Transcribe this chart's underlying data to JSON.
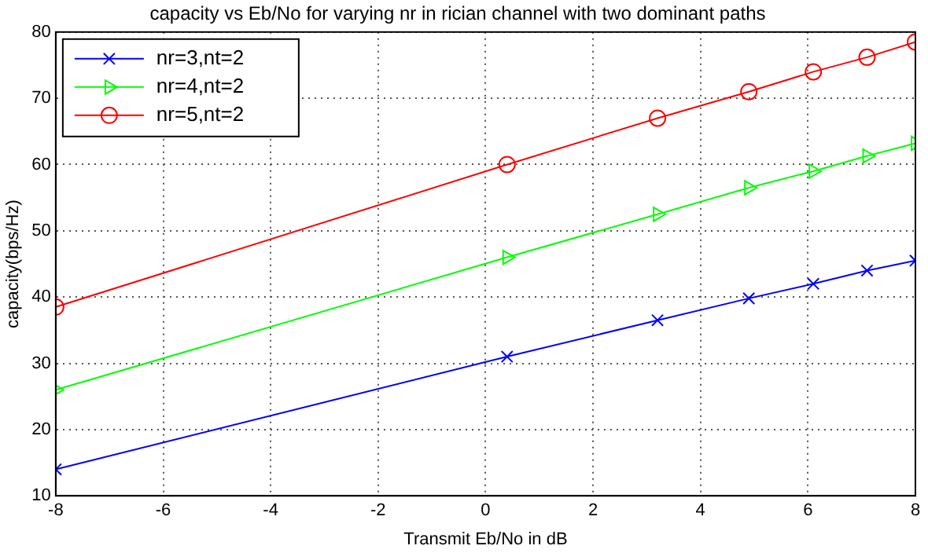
{
  "chart_data": {
    "type": "line",
    "title": "capacity vs Eb/No for varying nr in rician channel with two dominant paths",
    "xlabel": "Transmit Eb/No in dB",
    "ylabel": "capacity(bps/Hz)",
    "x": [
      -8,
      0.4,
      3.2,
      4.9,
      6.1,
      7.1,
      8
    ],
    "xlim": [
      -8,
      8
    ],
    "xticks": [
      -8,
      -6,
      -4,
      -2,
      0,
      2,
      4,
      6,
      8
    ],
    "ylim": [
      10,
      80
    ],
    "yticks": [
      10,
      20,
      30,
      40,
      50,
      60,
      70,
      80
    ],
    "grid": true,
    "legend": "top left",
    "line_style": "solid",
    "series": [
      {
        "name": "nr=3,nt=2",
        "color": "#0000ff",
        "marker": "cross",
        "values": [
          14,
          31,
          36.5,
          39.8,
          42,
          44,
          45.5
        ]
      },
      {
        "name": "nr=4,nt=2",
        "color": "#00ff00",
        "marker": "triangle",
        "values": [
          26,
          46,
          52.5,
          56.5,
          59,
          61.3,
          63.2
        ]
      },
      {
        "name": "nr=5,nt=2",
        "color": "#ff0000",
        "marker": "circle",
        "values": [
          38.5,
          60,
          67,
          71,
          74,
          76.2,
          78.5
        ]
      }
    ]
  }
}
